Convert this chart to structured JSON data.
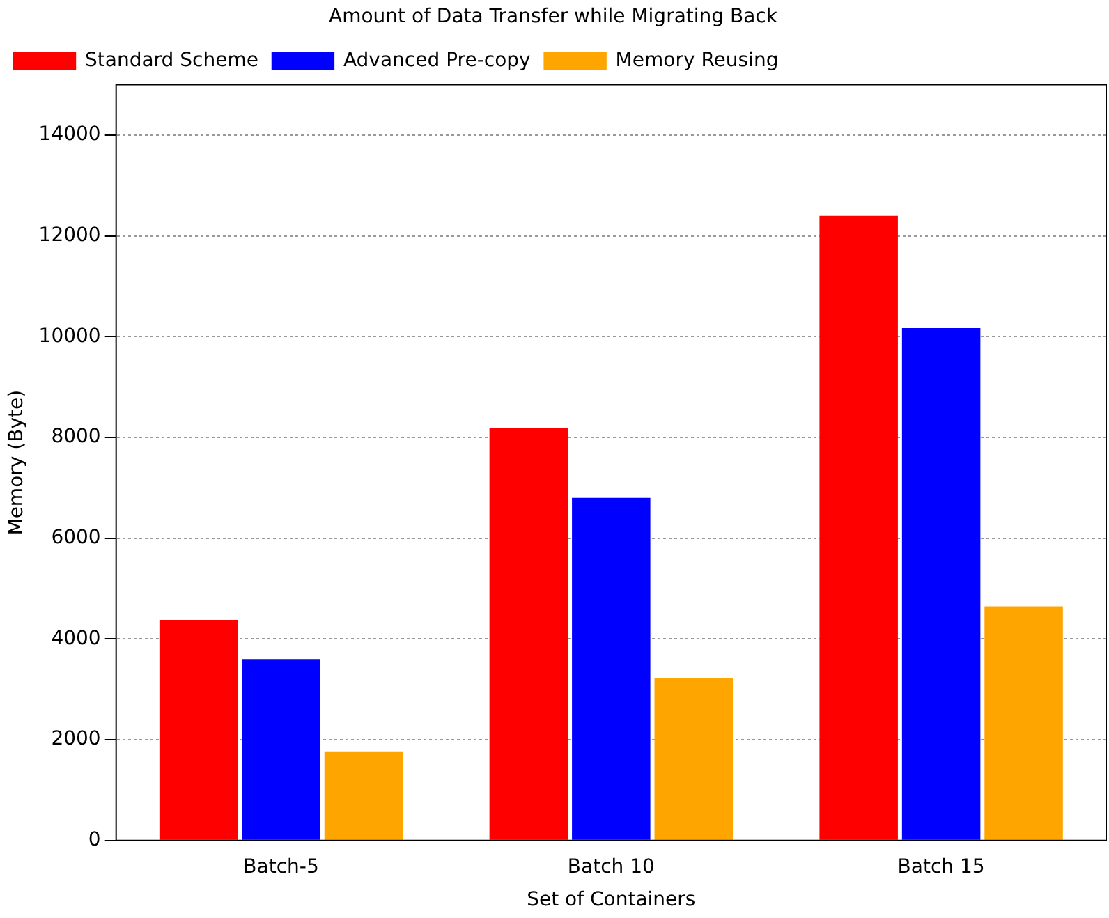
{
  "chart_data": {
    "type": "bar",
    "title": "Amount of Data Transfer while Migrating Back",
    "xlabel": "Set of Containers",
    "ylabel": "Memory (Byte)",
    "categories": [
      "Batch-5",
      "Batch 10",
      "Batch 15"
    ],
    "series": [
      {
        "name": "Standard Scheme",
        "color": "#ff0000",
        "values": [
          4380,
          8180,
          12400
        ]
      },
      {
        "name": "Advanced Pre-copy",
        "color": "#0000ff",
        "values": [
          3600,
          6800,
          10170
        ]
      },
      {
        "name": "Memory Reusing",
        "color": "#ffa500",
        "values": [
          1770,
          3230,
          4650
        ]
      }
    ],
    "ylim": [
      0,
      15000
    ],
    "yticks": [
      0,
      2000,
      4000,
      6000,
      8000,
      10000,
      12000,
      14000
    ],
    "grid": "y",
    "legend": "top left"
  }
}
